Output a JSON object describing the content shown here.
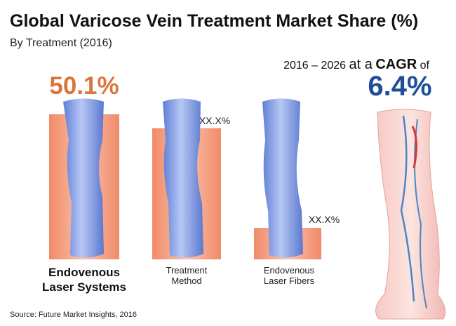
{
  "header": {
    "title": "Global Varicose Vein Treatment Market Share (%)",
    "subtitle": "By Treatment (2016)"
  },
  "segments": [
    {
      "label_lines": [
        "Endovenous",
        "Laser Systems"
      ],
      "value": "50.1%"
    },
    {
      "label_lines": [
        "Treatment",
        "Method"
      ],
      "value": "XX.X%"
    },
    {
      "label_lines": [
        "Endovenous",
        "Laser Fibers"
      ],
      "value": "XX.X%"
    }
  ],
  "cagr": {
    "period": "2016 – 2026",
    "prefix": "at a",
    "label": "CAGR",
    "suffix": "of",
    "value": "6.4%"
  },
  "source": "Source: Future Market Insights, 2016"
}
